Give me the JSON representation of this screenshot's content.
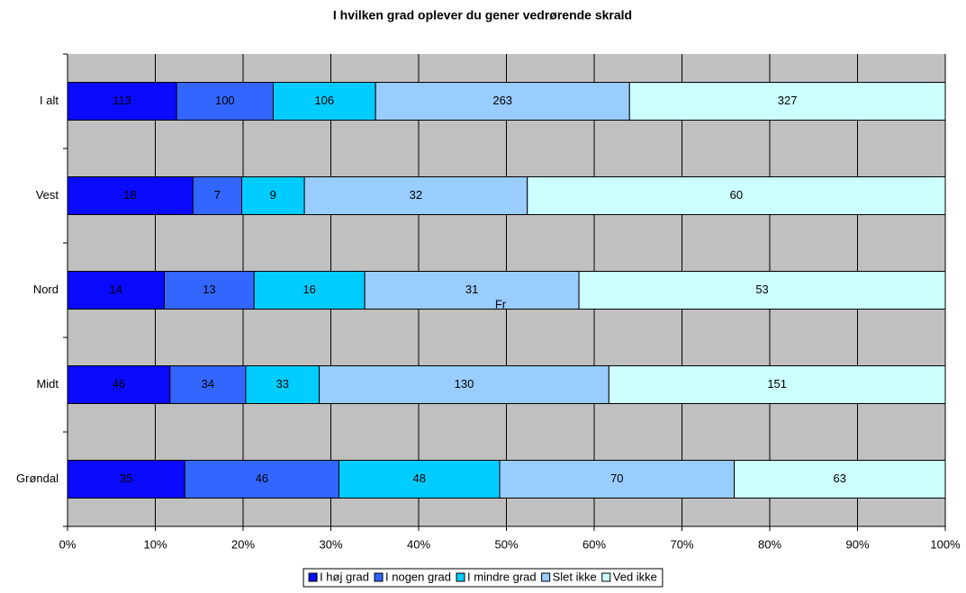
{
  "chart_data": {
    "type": "bar100h",
    "title": "I hvilken grad oplever du gener vedrørende skrald",
    "categories": [
      "I alt",
      "Vest",
      "Nord",
      "Midt",
      "Grøndal"
    ],
    "series": [
      {
        "name": "I høj grad",
        "color": "#0a0aff",
        "values": [
          113,
          18,
          14,
          46,
          35
        ]
      },
      {
        "name": "I nogen grad",
        "color": "#3366ff",
        "values": [
          100,
          7,
          13,
          34,
          46
        ]
      },
      {
        "name": "I mindre grad",
        "color": "#00ccff",
        "values": [
          106,
          9,
          16,
          33,
          48
        ]
      },
      {
        "name": "Slet ikke",
        "color": "#99ccff",
        "values": [
          263,
          32,
          31,
          130,
          70
        ]
      },
      {
        "name": "Ved ikke",
        "color": "#ccffff",
        "values": [
          327,
          60,
          53,
          151,
          63
        ]
      }
    ],
    "xlim": [
      0,
      100
    ],
    "xticks": [
      {
        "value": 0,
        "label": "0%"
      },
      {
        "value": 10,
        "label": "10%"
      },
      {
        "value": 20,
        "label": "20%"
      },
      {
        "value": 30,
        "label": "30%"
      },
      {
        "value": 40,
        "label": "40%"
      },
      {
        "value": 50,
        "label": "50%"
      },
      {
        "value": 60,
        "label": "60%"
      },
      {
        "value": 70,
        "label": "70%"
      },
      {
        "value": 80,
        "label": "80%"
      },
      {
        "value": 90,
        "label": "90%"
      },
      {
        "value": 100,
        "label": "100%"
      }
    ],
    "grid": true,
    "annotation": "Fr"
  }
}
